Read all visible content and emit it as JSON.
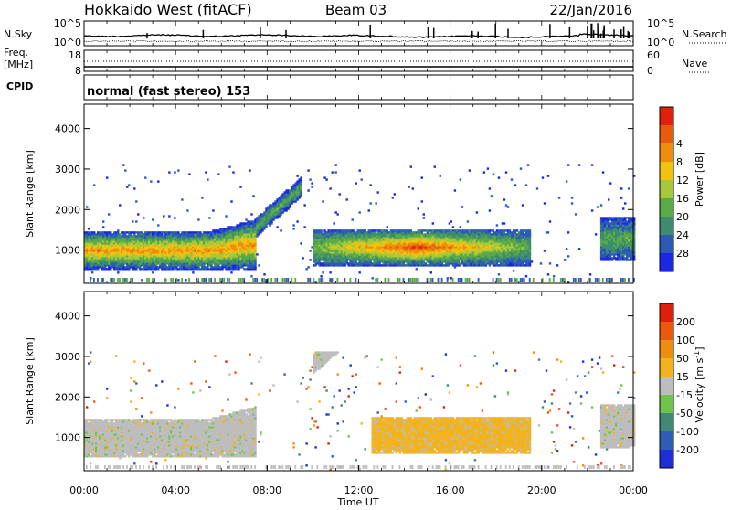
{
  "header": {
    "title": "Hokkaido West (fitACF)",
    "beam": "Beam 03",
    "date": "22/Jan/2016"
  },
  "noise_panel": {
    "left_label": "N.Sky",
    "right_label": "N.Search",
    "tick_top": "10^5",
    "tick_bottom": "10^0"
  },
  "freq_panel": {
    "left_label_1": "Freq.",
    "left_label_2": "[MHz]",
    "left_tick_top": "18",
    "left_tick_bottom": "8",
    "right_label": "Nave",
    "right_tick_top": "60",
    "right_tick_bottom": "0"
  },
  "cpid": {
    "label": "CPID",
    "mode": "normal (fast stereo) 153"
  },
  "chart_data": [
    {
      "type": "heatmap",
      "panel": "power",
      "ylabel": "Slant Range [km]",
      "ylim": [
        180,
        4600
      ],
      "yticks": [
        "1000",
        "2000",
        "3000",
        "4000"
      ],
      "colorbar_label": "Power [dB]",
      "colorbar_ticks": [
        "4",
        "8",
        "12",
        "16",
        "20",
        "24",
        "28"
      ],
      "colors": [
        "#1a28e6",
        "#2c5ab4",
        "#3e8c6e",
        "#5aab48",
        "#a8c83c",
        "#f2c20e",
        "#ef8c0e",
        "#e85a0c",
        "#e0200a"
      ],
      "regions": [
        {
          "t": [
            0.0,
            7.5
          ],
          "r": [
            500,
            1500
          ],
          "peak": "24"
        },
        {
          "t": [
            7.5,
            9.5
          ],
          "r": [
            1500,
            2700
          ],
          "peak": "12"
        },
        {
          "t": [
            10.0,
            19.5
          ],
          "r": [
            600,
            1500
          ],
          "peak": "28"
        },
        {
          "t": [
            22.5,
            24.0
          ],
          "r": [
            700,
            1800
          ],
          "peak": "12"
        }
      ]
    },
    {
      "type": "heatmap",
      "panel": "velocity",
      "ylabel": "Slant Range [km]",
      "ylim": [
        180,
        4600
      ],
      "yticks": [
        "1000",
        "2000",
        "3000",
        "4000"
      ],
      "xlabel": "Time UT",
      "xticks": [
        "00:00",
        "04:00",
        "08:00",
        "12:00",
        "16:00",
        "20:00",
        "00:00"
      ],
      "xlim": [
        0,
        24
      ],
      "colorbar_label": "Velocity [m s^-1]",
      "colorbar_ticks": [
        "200",
        "100",
        "50",
        "15",
        "-15",
        "-50",
        "-100",
        "-200"
      ],
      "colors": [
        "#1f2fd6",
        "#2e5cb8",
        "#3f8a70",
        "#6fc54c",
        "#bdbdbd",
        "#f2b31e",
        "#f08c10",
        "#eb5a0c",
        "#e01e0c"
      ],
      "regions": [
        {
          "t": [
            0.0,
            7.5
          ],
          "r": [
            500,
            1500
          ],
          "class": "-15..15"
        },
        {
          "t": [
            10.0,
            12.5
          ],
          "r": [
            600,
            1300
          ],
          "class": "15..50"
        },
        {
          "t": [
            12.5,
            19.5
          ],
          "r": [
            600,
            1500
          ],
          "class": "-50..-15"
        },
        {
          "t": [
            22.5,
            24.0
          ],
          "r": [
            700,
            1800
          ],
          "class": "-15..15"
        }
      ]
    }
  ]
}
